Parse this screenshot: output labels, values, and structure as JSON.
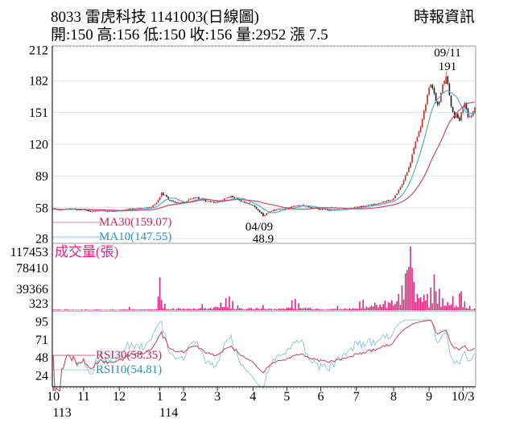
{
  "header": {
    "title": "8033 雷虎科技 1141003(日線圖)",
    "source": "時報資訊",
    "quote_line": "開:150 高:156 低:150 收:156 量:2952 漲 7.5"
  },
  "chart_data": {
    "type": "candlestick",
    "title": "8033 雷虎科技 日線圖",
    "panels": [
      "price",
      "volume",
      "rsi"
    ],
    "days": 250,
    "price_panel": {
      "yticks": [
        212,
        182,
        151,
        120,
        89,
        58,
        28
      ],
      "ylim": [
        24,
        216
      ],
      "ma30_label": "MA30(159.07)",
      "ma10_label": "MA10(147.55)",
      "ma30_value": 159.07,
      "ma10_value": 147.55,
      "peak_annotation": {
        "date": "09/11",
        "value": "191",
        "day": 232
      },
      "trough_annotation": {
        "date": "04/09",
        "value": "48.9",
        "day": 124
      }
    },
    "volume_panel": {
      "label": "成交量(張)",
      "yticks": [
        117453,
        78410,
        39366,
        323
      ],
      "max": 117453,
      "last_volume": 2952
    },
    "rsi_panel": {
      "yticks": [
        95,
        71,
        48,
        24
      ],
      "rsi30_label": "RSI30(58.35)",
      "rsi10_label": "RSI10(54.81)",
      "rsi30_value": 58.35,
      "rsi10_value": 54.81
    },
    "x_axis": {
      "months": [
        {
          "label": "10",
          "day": 0
        },
        {
          "label": "11",
          "day": 18
        },
        {
          "label": "12",
          "day": 39
        },
        {
          "label": "1",
          "day": 63
        },
        {
          "label": "2",
          "day": 77
        },
        {
          "label": "3",
          "day": 97
        },
        {
          "label": "4",
          "day": 118
        },
        {
          "label": "5",
          "day": 138
        },
        {
          "label": "6",
          "day": 158
        },
        {
          "label": "7",
          "day": 179
        },
        {
          "label": "8",
          "day": 201
        },
        {
          "label": "9",
          "day": 222
        },
        {
          "label": "10/3",
          "day": 242
        }
      ],
      "years": [
        {
          "label": "113",
          "day": 0
        },
        {
          "label": "114",
          "day": 63
        }
      ]
    },
    "last_quote": {
      "open": 150,
      "high": 156,
      "low": 150,
      "close": 156,
      "volume": 2952,
      "change": 7.5
    },
    "price_anchors": [
      [
        0,
        57
      ],
      [
        4,
        56
      ],
      [
        8,
        57.5
      ],
      [
        12,
        56.5
      ],
      [
        18,
        56
      ],
      [
        23,
        54.5
      ],
      [
        28,
        55.5
      ],
      [
        33,
        54.5
      ],
      [
        39,
        55
      ],
      [
        45,
        56.5
      ],
      [
        52,
        57.5
      ],
      [
        58,
        58.5
      ],
      [
        60,
        61
      ],
      [
        62,
        66
      ],
      [
        64,
        72
      ],
      [
        66,
        70
      ],
      [
        68,
        66
      ],
      [
        71,
        64
      ],
      [
        74,
        63.2
      ],
      [
        77,
        63
      ],
      [
        81,
        66.5
      ],
      [
        85,
        68
      ],
      [
        90,
        64.5
      ],
      [
        94,
        63.5
      ],
      [
        97,
        63
      ],
      [
        101,
        66.5
      ],
      [
        105,
        69
      ],
      [
        108,
        67
      ],
      [
        111,
        64.5
      ],
      [
        114,
        62.5
      ],
      [
        118,
        60
      ],
      [
        121,
        55.5
      ],
      [
        124,
        50
      ],
      [
        126,
        52.5
      ],
      [
        129,
        55
      ],
      [
        133,
        56.5
      ],
      [
        138,
        57.5
      ],
      [
        142,
        59.5
      ],
      [
        146,
        61
      ],
      [
        150,
        59
      ],
      [
        154,
        57.5
      ],
      [
        158,
        56.5
      ],
      [
        163,
        55.5
      ],
      [
        168,
        56
      ],
      [
        173,
        57
      ],
      [
        179,
        58.5
      ],
      [
        184,
        59.5
      ],
      [
        189,
        61
      ],
      [
        194,
        63
      ],
      [
        198,
        65
      ],
      [
        201,
        67
      ],
      [
        203,
        72
      ],
      [
        205,
        78
      ],
      [
        207,
        85
      ],
      [
        209,
        93
      ],
      [
        211,
        103
      ],
      [
        213,
        117
      ],
      [
        215,
        127
      ],
      [
        217,
        138
      ],
      [
        219,
        152
      ],
      [
        221,
        168
      ],
      [
        223,
        180
      ],
      [
        225,
        168
      ],
      [
        227,
        157
      ],
      [
        229,
        170
      ],
      [
        231,
        183
      ],
      [
        232,
        186
      ],
      [
        233,
        179
      ],
      [
        234,
        169
      ],
      [
        235,
        158
      ],
      [
        236,
        151
      ],
      [
        237,
        146
      ],
      [
        238,
        150
      ],
      [
        239,
        147
      ],
      [
        240,
        143
      ],
      [
        241,
        150
      ],
      [
        242,
        156
      ],
      [
        243,
        159
      ],
      [
        244,
        153
      ],
      [
        245,
        148
      ],
      [
        246,
        146
      ],
      [
        247,
        149
      ],
      [
        248,
        151
      ],
      [
        249,
        156
      ]
    ],
    "forced_candles": {
      "124": {
        "open": 53,
        "low": 48.9,
        "close": 50
      },
      "232": {
        "open": 179,
        "high": 191,
        "close": 186
      },
      "249": {
        "open": 150,
        "high": 156,
        "low": 150,
        "close": 156
      }
    },
    "volume_base_anchors": [
      [
        0,
        1300
      ],
      [
        60,
        1600
      ],
      [
        62,
        4500
      ],
      [
        70,
        3200
      ],
      [
        77,
        2600
      ],
      [
        97,
        5200
      ],
      [
        112,
        3000
      ],
      [
        118,
        3600
      ],
      [
        130,
        2200
      ],
      [
        138,
        3600
      ],
      [
        150,
        4200
      ],
      [
        158,
        1900
      ],
      [
        170,
        2100
      ],
      [
        179,
        4500
      ],
      [
        195,
        9000
      ],
      [
        201,
        16000
      ],
      [
        215,
        20000
      ],
      [
        222,
        13000
      ],
      [
        235,
        10000
      ],
      [
        245,
        5500
      ],
      [
        249,
        2600
      ]
    ],
    "volume_spikes": {
      "45": 6000,
      "62": 25000,
      "63": 60500,
      "64": 19000,
      "66": 12000,
      "88": 11000,
      "99": 14000,
      "102": 22000,
      "104": 25500,
      "106": 17000,
      "109": 9000,
      "124": 9500,
      "141": 18500,
      "143": 21000,
      "145": 13000,
      "168": 8000,
      "181": 16000,
      "183": 19500,
      "190": 14000,
      "196": 18000,
      "204": 30000,
      "206": 46000,
      "208": 68000,
      "209": 74000,
      "210": 80000,
      "211": 117453,
      "212": 78410,
      "213": 52000,
      "215": 30000,
      "217": 24000,
      "219": 28000,
      "221": 30000,
      "223": 42000,
      "225": 66000,
      "226": 35000,
      "228": 39366,
      "230": 22000,
      "233": 15000,
      "236": 26000,
      "240": 31000,
      "241": 35000,
      "243": 16000,
      "246": 8000,
      "249": 2952
    },
    "colors": {
      "up": "#c22f28",
      "down": "#1a1a1a",
      "ma10": "#5aaac8",
      "ma30": "#c84868",
      "volume": "#e0267e",
      "rsi10": "#8cc3d4",
      "rsi30": "#cc3f63",
      "grid": "#e3e3e3",
      "axis": "#222222",
      "panel_border": "#999999",
      "legend_ma30_text": "#cc2255",
      "legend_ma10_text": "#2596be",
      "volume_label_text": "#e0267e"
    }
  }
}
